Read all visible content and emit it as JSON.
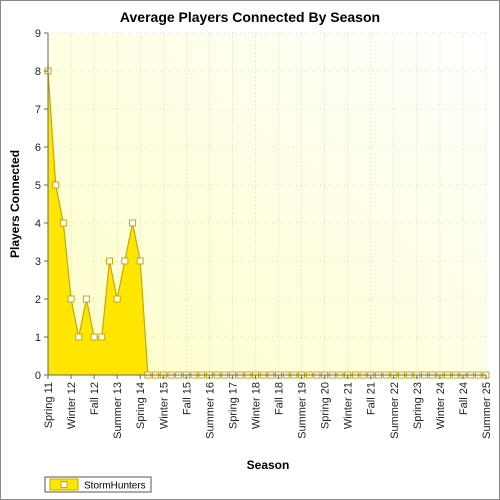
{
  "chart_data": {
    "type": "area",
    "title": "Average Players Connected By Season",
    "xlabel": "Season",
    "ylabel": "Players Connected",
    "ylim": [
      0,
      9
    ],
    "yticks": [
      0,
      1,
      2,
      3,
      4,
      5,
      6,
      7,
      8,
      9
    ],
    "grid": true,
    "legend_position": "bottom-left",
    "tick_labels": [
      "Spring 11",
      "Winter 12",
      "Fall 12",
      "Summer 13",
      "Spring 14",
      "Winter 15",
      "Fall 15",
      "Summer 16",
      "Spring 17",
      "Winter 18",
      "Fall 18",
      "Summer 19",
      "Spring 20",
      "Winter 21",
      "Fall 21",
      "Summer 22",
      "Spring 23",
      "Winter 24",
      "Fall 24",
      "Summer 25"
    ],
    "categories": [
      "Spring 11",
      "Summer 11",
      "Fall 11",
      "Winter 12",
      "Spring 12",
      "Summer 12",
      "Fall 12",
      "Winter 13",
      "Spring 13",
      "Summer 13",
      "Fall 13",
      "Winter 14",
      "Spring 14",
      "Summer 14",
      "Fall 14",
      "Winter 15",
      "Spring 15",
      "Summer 15",
      "Fall 15",
      "Winter 16",
      "Spring 16",
      "Summer 16",
      "Fall 16",
      "Winter 17",
      "Spring 17",
      "Summer 17",
      "Fall 17",
      "Winter 18",
      "Spring 18",
      "Summer 18",
      "Fall 18",
      "Winter 19",
      "Spring 19",
      "Summer 19",
      "Fall 19",
      "Winter 20",
      "Spring 20",
      "Summer 20",
      "Fall 20",
      "Winter 21",
      "Spring 21",
      "Summer 21",
      "Fall 21",
      "Winter 22",
      "Spring 22",
      "Summer 22",
      "Fall 22",
      "Winter 23",
      "Spring 23",
      "Summer 23",
      "Fall 23",
      "Winter 24",
      "Spring 24",
      "Summer 24",
      "Fall 24",
      "Winter 25",
      "Spring 25",
      "Summer 25"
    ],
    "series": [
      {
        "name": "StormHunters",
        "color": "#ffe600",
        "stroke": "#c8a800",
        "values": [
          8,
          5,
          4,
          2,
          1,
          2,
          1,
          1,
          3,
          2,
          3,
          4,
          3,
          0,
          0,
          0,
          0,
          0,
          0,
          0,
          0,
          0,
          0,
          0,
          0,
          0,
          0,
          0,
          0,
          0,
          0,
          0,
          0,
          0,
          0,
          0,
          0,
          0,
          0,
          0,
          0,
          0,
          0,
          0,
          0,
          0,
          0,
          0,
          0,
          0,
          0,
          0,
          0,
          0,
          0,
          0,
          0,
          0
        ]
      }
    ]
  },
  "colors": {
    "plot_gradient_start": "#ffffc8",
    "plot_gradient_end": "#ffffff",
    "grid": "#b9b9a6",
    "axis": "#666666"
  }
}
